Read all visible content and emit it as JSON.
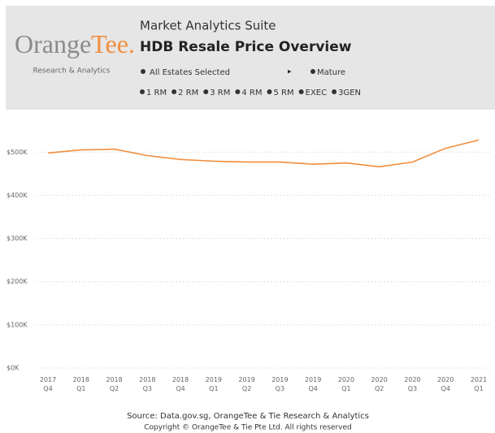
{
  "header": {
    "logo": {
      "part1": "Orange",
      "part2": "Tee.",
      "tagline": "Research & Analytics"
    },
    "suite": "Market Analytics Suite",
    "title": "HDB Resale Price Overview",
    "estate": "All Estates Selected",
    "arrow": "▸",
    "maturity": "Mature",
    "filters": [
      "1 RM",
      "2 RM",
      "3 RM",
      "4 RM",
      "5 RM",
      "EXEC",
      "3GEN"
    ]
  },
  "chart_data": {
    "type": "line",
    "categories": [
      "2017 Q4",
      "2018 Q1",
      "2018 Q2",
      "2018 Q3",
      "2018 Q4",
      "2019 Q1",
      "2019 Q2",
      "2019 Q3",
      "2019 Q4",
      "2020 Q1",
      "2020 Q2",
      "2020 Q3",
      "2020 Q4",
      "2021 Q1"
    ],
    "series": [
      {
        "color": "#f28e3c",
        "values": [
          498000,
          505000,
          507000,
          492000,
          483000,
          479000,
          477000,
          477000,
          472000,
          475000,
          466000,
          477000,
          509000,
          528000
        ]
      }
    ],
    "ylim": [
      0,
      540000
    ],
    "yticks": [
      {
        "value": 0,
        "label": "$0K"
      },
      {
        "value": 100000,
        "label": "$100K"
      },
      {
        "value": 200000,
        "label": "$200K"
      },
      {
        "value": 300000,
        "label": "$300K"
      },
      {
        "value": 400000,
        "label": "$400K"
      },
      {
        "value": 500000,
        "label": "$500K"
      }
    ],
    "grid": true
  },
  "footer": {
    "source": "Source: Data.gov.sg, OrangeTee & Tie Research & Analytics",
    "copyright": "Copyright © OrangeTee & Tie Pte Ltd. All rights reserved"
  }
}
